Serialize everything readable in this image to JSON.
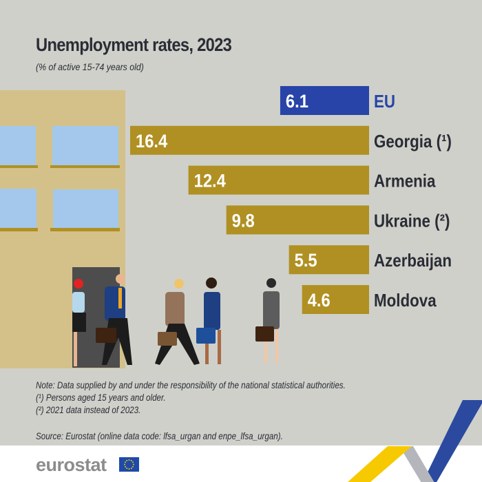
{
  "title": "Unemployment rates, 2023",
  "subtitle": "(% of active 15-74 years old)",
  "chart_data": {
    "type": "bar",
    "orientation": "horizontal",
    "title": "Unemployment rates, 2023",
    "subtitle": "(% of active 15-74 years old)",
    "categories": [
      "EU",
      "Georgia (¹)",
      "Armenia",
      "Ukraine (²)",
      "Azerbaijan",
      "Moldova"
    ],
    "values": [
      6.1,
      16.4,
      12.4,
      9.8,
      5.5,
      4.6
    ],
    "value_labels": [
      "6.1",
      "16.4",
      "12.4",
      "9.8",
      "5.5",
      "4.6"
    ],
    "colors": [
      "#2844a8",
      "#b09022",
      "#b09022",
      "#b09022",
      "#b09022",
      "#b09022"
    ],
    "label_colors": [
      "#2844a8",
      "#2a2d35",
      "#2a2d35",
      "#2a2d35",
      "#2a2d35",
      "#2a2d35"
    ],
    "axis": "none",
    "grid": false,
    "legend": "none"
  },
  "notes": [
    "Note: Data supplied by and under the responsibility of the national statistical authorities.",
    "(¹) Persons aged 15 years and older.",
    "(²) 2021 data instead of 2023."
  ],
  "source": "Source: Eurostat  (online data code: lfsa_urgan and enpe_lfsa_urgan).",
  "logo": {
    "text": "eurostat",
    "icon": "eu-flag-icon"
  },
  "colors": {
    "background": "#cfd0ca",
    "building": "#d4c18a",
    "window": "#a3c8eb",
    "door": "#4d4d4d",
    "accent_yellow": "#f7c900",
    "accent_blue": "#2b4a9f"
  }
}
